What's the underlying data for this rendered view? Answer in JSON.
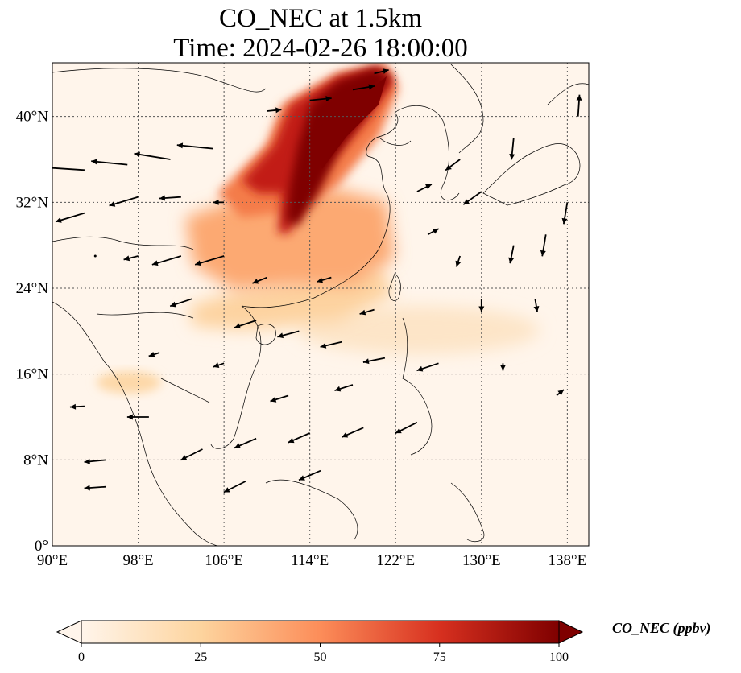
{
  "title": {
    "line1": "CO_NEC at 1.5km",
    "line2": "Time: 2024-02-26 18:00:00"
  },
  "map": {
    "lon_range": [
      90,
      140
    ],
    "lat_range": [
      0,
      45
    ],
    "lon_ticks": [
      {
        "value": 90,
        "label": "90°E"
      },
      {
        "value": 98,
        "label": "98°E"
      },
      {
        "value": 106,
        "label": "106°E"
      },
      {
        "value": 114,
        "label": "114°E"
      },
      {
        "value": 122,
        "label": "122°E"
      },
      {
        "value": 130,
        "label": "130°E"
      },
      {
        "value": 138,
        "label": "138°E"
      }
    ],
    "lat_ticks": [
      {
        "value": 0,
        "label": "0°"
      },
      {
        "value": 8,
        "label": "8°N"
      },
      {
        "value": 16,
        "label": "16°N"
      },
      {
        "value": 24,
        "label": "24°N"
      },
      {
        "value": 32,
        "label": "32°N"
      },
      {
        "value": 40,
        "label": "40°N"
      }
    ],
    "gridlines": true,
    "variable": "CO_NEC",
    "level": "1.5km",
    "plume_regions": [
      {
        "name": "north-china-plume",
        "level": 100,
        "lon": [
          112,
          120
        ],
        "lat": [
          31,
          45
        ]
      },
      {
        "name": "central-china",
        "level": 40,
        "lon": [
          103,
          121
        ],
        "lat": [
          27,
          35
        ]
      },
      {
        "name": "southeast-china",
        "level": 20,
        "lon": [
          103,
          123
        ],
        "lat": [
          21,
          29
        ]
      },
      {
        "name": "philippine-sea-band",
        "level": 10,
        "lon": [
          121,
          140
        ],
        "lat": [
          16,
          22
        ]
      }
    ]
  },
  "colorbar": {
    "label": "CO_NEC (ppbv)",
    "min": 0,
    "max": 100,
    "extend": "both",
    "ticks": [
      {
        "value": 0,
        "label": "0"
      },
      {
        "value": 25,
        "label": "25"
      },
      {
        "value": 50,
        "label": "50"
      },
      {
        "value": 75,
        "label": "75"
      },
      {
        "value": 100,
        "label": "100"
      }
    ],
    "colors": [
      "#fff5eb",
      "#fdd49e",
      "#fc8d59",
      "#d7301f",
      "#7f0000"
    ]
  },
  "wind": {
    "color": "#000000",
    "vectors": [
      {
        "lon": 93,
        "lat": 35,
        "u": -6,
        "v": 0.4
      },
      {
        "lon": 97,
        "lat": 35.5,
        "u": -5,
        "v": 0.5
      },
      {
        "lon": 101,
        "lat": 36,
        "u": -5,
        "v": 0.8
      },
      {
        "lon": 105,
        "lat": 37,
        "u": -5,
        "v": 0.5
      },
      {
        "lon": 93,
        "lat": 31,
        "u": -4,
        "v": -1.2
      },
      {
        "lon": 98,
        "lat": 32.5,
        "u": -4,
        "v": -1.2
      },
      {
        "lon": 102,
        "lat": 32.5,
        "u": -3,
        "v": -0.2
      },
      {
        "lon": 102,
        "lat": 27,
        "u": -4,
        "v": -1.2
      },
      {
        "lon": 106,
        "lat": 27,
        "u": -4,
        "v": -1.2
      },
      {
        "lon": 103,
        "lat": 23,
        "u": -3,
        "v": -1
      },
      {
        "lon": 109,
        "lat": 21,
        "u": -3,
        "v": -1
      },
      {
        "lon": 113,
        "lat": 20,
        "u": -3,
        "v": -0.8
      },
      {
        "lon": 117,
        "lat": 19,
        "u": -3,
        "v": -0.7
      },
      {
        "lon": 121,
        "lat": 17.5,
        "u": -3,
        "v": -0.6
      },
      {
        "lon": 126,
        "lat": 17,
        "u": -3,
        "v": -1
      },
      {
        "lon": 104,
        "lat": 9,
        "u": -3,
        "v": -1.5
      },
      {
        "lon": 109,
        "lat": 10,
        "u": -3,
        "v": -1.3
      },
      {
        "lon": 114,
        "lat": 10.5,
        "u": -3,
        "v": -1.3
      },
      {
        "lon": 119,
        "lat": 11,
        "u": -3,
        "v": -1.3
      },
      {
        "lon": 124,
        "lat": 11.5,
        "u": -3,
        "v": -1.5
      },
      {
        "lon": 108,
        "lat": 6,
        "u": -3,
        "v": -1.5
      },
      {
        "lon": 115,
        "lat": 7,
        "u": -3,
        "v": -1.3
      },
      {
        "lon": 95,
        "lat": 8,
        "u": -3,
        "v": -0.3
      },
      {
        "lon": 99,
        "lat": 12,
        "u": -3,
        "v": 0
      },
      {
        "lon": 95,
        "lat": 5.5,
        "u": -3,
        "v": -0.2
      },
      {
        "lon": 93,
        "lat": 13,
        "u": -2,
        "v": -0.1
      },
      {
        "lon": 112,
        "lat": 14,
        "u": -2.5,
        "v": -0.8
      },
      {
        "lon": 118,
        "lat": 15,
        "u": -2.5,
        "v": -0.8
      },
      {
        "lon": 130,
        "lat": 33,
        "u": -2.5,
        "v": -1.8
      },
      {
        "lon": 128,
        "lat": 36,
        "u": -2,
        "v": -1.5
      },
      {
        "lon": 133,
        "lat": 28,
        "u": -0.5,
        "v": -2.5
      },
      {
        "lon": 136,
        "lat": 29,
        "u": -0.5,
        "v": -3
      },
      {
        "lon": 138,
        "lat": 32,
        "u": -0.5,
        "v": -3
      },
      {
        "lon": 133,
        "lat": 38,
        "u": -0.3,
        "v": -3
      },
      {
        "lon": 139,
        "lat": 40,
        "u": 0.2,
        "v": 3
      },
      {
        "lon": 130,
        "lat": 23,
        "u": 0,
        "v": -1.8
      },
      {
        "lon": 135,
        "lat": 23,
        "u": 0.3,
        "v": -1.8
      },
      {
        "lon": 128,
        "lat": 27,
        "u": -0.5,
        "v": -1.5
      },
      {
        "lon": 137,
        "lat": 14,
        "u": 1,
        "v": 0.8
      },
      {
        "lon": 132,
        "lat": 17,
        "u": 0,
        "v": -1
      },
      {
        "lon": 110,
        "lat": 40.5,
        "u": 2,
        "v": 0.2
      },
      {
        "lon": 114,
        "lat": 41.5,
        "u": 3,
        "v": 0.3
      },
      {
        "lon": 118,
        "lat": 42.5,
        "u": 3,
        "v": 0.5
      },
      {
        "lon": 120,
        "lat": 44,
        "u": 2,
        "v": 0.5
      },
      {
        "lon": 124,
        "lat": 33,
        "u": 2,
        "v": 1
      },
      {
        "lon": 125,
        "lat": 29,
        "u": 1.5,
        "v": 0.8
      },
      {
        "lon": 94,
        "lat": 27,
        "u": 0,
        "v": 0
      },
      {
        "lon": 106,
        "lat": 32,
        "u": -1.5,
        "v": 0
      },
      {
        "lon": 98,
        "lat": 27,
        "u": -2,
        "v": -0.5
      },
      {
        "lon": 110,
        "lat": 25,
        "u": -2,
        "v": -0.8
      },
      {
        "lon": 116,
        "lat": 25,
        "u": -2,
        "v": -0.6
      },
      {
        "lon": 120,
        "lat": 22,
        "u": -2,
        "v": -0.6
      },
      {
        "lon": 100,
        "lat": 18,
        "u": -1.5,
        "v": -0.5
      },
      {
        "lon": 106,
        "lat": 17,
        "u": -1.5,
        "v": -0.5
      }
    ]
  }
}
